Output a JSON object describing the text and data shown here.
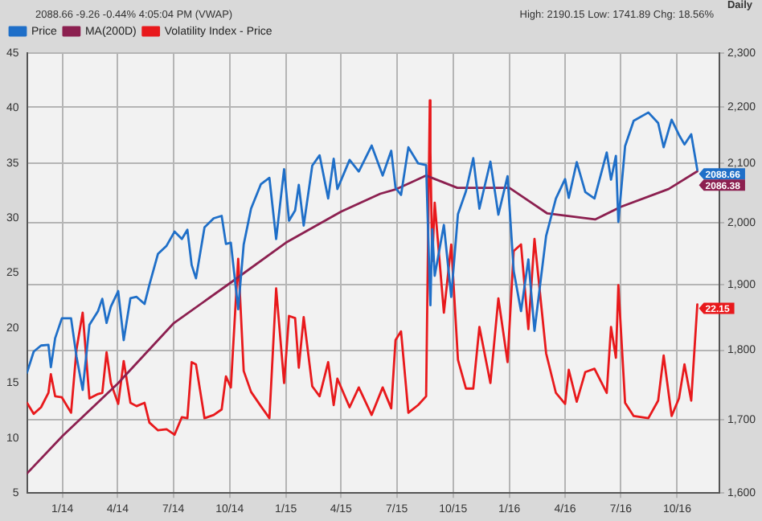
{
  "chart_data": {
    "type": "line",
    "annotations": [
      "2088.66 -9.26 -0.44% 4:05:04 PM (VWAP)",
      "High: 2190.15 Low: 1741.89 Chg: 18.56%",
      "Daily"
    ],
    "x": [
      "2013-11-04",
      "2013-11-15",
      "2013-11-27",
      "2013-12-09",
      "2013-12-13",
      "2013-12-20",
      "2013-12-31",
      "2014-01-15",
      "2014-01-24",
      "2014-02-03",
      "2014-02-14",
      "2014-02-28",
      "2014-03-07",
      "2014-03-14",
      "2014-03-21",
      "2014-04-02",
      "2014-04-11",
      "2014-04-22",
      "2014-05-02",
      "2014-05-15",
      "2014-05-23",
      "2014-06-06",
      "2014-06-20",
      "2014-07-03",
      "2014-07-15",
      "2014-07-24",
      "2014-07-31",
      "2014-08-07",
      "2014-08-21",
      "2014-09-05",
      "2014-09-18",
      "2014-09-25",
      "2014-10-03",
      "2014-10-15",
      "2014-10-24",
      "2014-11-05",
      "2014-11-21",
      "2014-12-05",
      "2014-12-16",
      "2014-12-29",
      "2015-01-06",
      "2015-01-16",
      "2015-01-22",
      "2015-01-30",
      "2015-02-13",
      "2015-02-25",
      "2015-03-11",
      "2015-03-20",
      "2015-03-26",
      "2015-04-15",
      "2015-04-30",
      "2015-05-21",
      "2015-06-08",
      "2015-06-22",
      "2015-06-29",
      "2015-07-08",
      "2015-07-20",
      "2015-08-05",
      "2015-08-18",
      "2015-08-24",
      "2015-08-25",
      "2015-08-28",
      "2015-09-01",
      "2015-09-16",
      "2015-09-28",
      "2015-10-09",
      "2015-10-22",
      "2015-11-03",
      "2015-11-13",
      "2015-12-01",
      "2015-12-14",
      "2015-12-29",
      "2016-01-08",
      "2016-01-20",
      "2016-02-01",
      "2016-02-11",
      "2016-03-01",
      "2016-03-17",
      "2016-04-01",
      "2016-04-07",
      "2016-04-20",
      "2016-05-04",
      "2016-05-19",
      "2016-06-08",
      "2016-06-15",
      "2016-06-23",
      "2016-06-27",
      "2016-07-08",
      "2016-07-22",
      "2016-08-15",
      "2016-08-31",
      "2016-09-09",
      "2016-09-22",
      "2016-10-04",
      "2016-10-13",
      "2016-10-24",
      "2016-11-03"
    ],
    "series": [
      {
        "name": "Price",
        "color": "#1f6fc8",
        "axis": "y2",
        "values": [
          1767,
          1798,
          1807,
          1808,
          1775,
          1818,
          1848,
          1848,
          1790,
          1742,
          1838,
          1859,
          1878,
          1841,
          1866,
          1890,
          1815,
          1879,
          1881,
          1870,
          1900,
          1949,
          1962,
          1985,
          1973,
          1988,
          1931,
          1910,
          1992,
          2007,
          2011,
          1965,
          1967,
          1862,
          1964,
          2023,
          2064,
          2075,
          1973,
          2090,
          2003,
          2020,
          2063,
          1995,
          2096,
          2114,
          2040,
          2108,
          2056,
          2106,
          2086,
          2131,
          2079,
          2122,
          2058,
          2046,
          2128,
          2100,
          2097,
          1893,
          1868,
          1989,
          1914,
          1996,
          1881,
          2014,
          2052,
          2109,
          2023,
          2103,
          2013,
          2078,
          1922,
          1859,
          1940,
          1829,
          1978,
          2040,
          2073,
          2041,
          2102,
          2051,
          2040,
          2119,
          2072,
          2113,
          2001,
          2130,
          2175,
          2190,
          2171,
          2128,
          2177,
          2150,
          2133,
          2151,
          2088.66
        ],
        "value_labels": [
          null,
          null,
          null,
          null,
          null,
          null,
          null,
          null,
          null,
          null,
          null,
          null,
          null,
          null,
          null,
          null,
          null,
          null,
          null,
          null,
          null,
          null,
          null,
          null,
          null,
          null,
          null,
          null,
          null,
          null,
          null,
          null,
          null,
          null,
          null,
          null,
          null,
          null,
          null,
          null,
          null,
          null,
          null,
          null,
          null,
          null,
          null,
          null,
          null,
          null,
          null,
          null,
          null,
          null,
          null,
          null,
          null,
          null,
          null,
          null,
          null,
          null,
          null,
          null,
          null,
          null,
          null,
          null,
          null,
          null,
          null,
          null,
          null,
          null,
          null,
          null,
          null,
          null,
          null,
          null,
          null,
          null,
          null,
          null,
          null,
          null,
          null,
          null,
          null,
          null,
          null,
          null,
          null,
          null,
          null,
          null,
          "2088.66"
        ]
      },
      {
        "name": "MA(200D)",
        "color": "#8c2050",
        "axis": "y2",
        "x": [
          "2013-11-04",
          "2014-01-01",
          "2014-04-01",
          "2014-07-01",
          "2014-10-01",
          "2015-01-01",
          "2015-04-01",
          "2015-06-04",
          "2015-07-01",
          "2015-08-18",
          "2015-10-08",
          "2016-01-01",
          "2016-03-03",
          "2016-05-20",
          "2016-07-01",
          "2016-09-17",
          "2016-11-03"
        ],
        "values": [
          1626,
          1677,
          1751,
          1840,
          1902,
          1967,
          2018,
          2048,
          2056,
          2079,
          2058,
          2058,
          2015,
          2005,
          2026,
          2056,
          2086.38
        ],
        "value_labels": [
          null,
          null,
          null,
          null,
          null,
          null,
          null,
          null,
          null,
          null,
          null,
          null,
          null,
          null,
          null,
          null,
          "2086.38"
        ]
      },
      {
        "name": "Volatility Index - Price",
        "color": "#e8191c",
        "axis": "y",
        "values": [
          13.2,
          12.2,
          12.8,
          14.1,
          15.8,
          13.8,
          13.7,
          12.3,
          18.1,
          21.4,
          13.6,
          14.0,
          14.1,
          17.8,
          15.0,
          13.1,
          17.0,
          13.2,
          12.9,
          13.2,
          11.4,
          10.7,
          10.8,
          10.3,
          11.9,
          11.8,
          16.9,
          16.7,
          11.8,
          12.1,
          12.6,
          15.6,
          14.6,
          26.3,
          16.1,
          14.2,
          12.9,
          11.8,
          23.6,
          15.0,
          21.1,
          20.9,
          16.4,
          21.0,
          14.7,
          13.8,
          16.9,
          13.0,
          15.4,
          12.8,
          14.6,
          12.1,
          14.6,
          12.7,
          18.9,
          19.7,
          12.3,
          13.0,
          13.8,
          40.7,
          36.0,
          26.1,
          31.4,
          21.4,
          27.6,
          17.1,
          14.5,
          14.5,
          20.1,
          15.0,
          22.7,
          16.9,
          27.0,
          27.6,
          19.9,
          28.1,
          17.7,
          14.1,
          13.1,
          16.2,
          13.3,
          16.0,
          16.3,
          14.1,
          20.1,
          17.3,
          23.9,
          13.2,
          12.0,
          11.8,
          13.4,
          17.5,
          12.0,
          13.6,
          16.7,
          13.4,
          22.15
        ],
        "value_labels": [
          null,
          null,
          null,
          null,
          null,
          null,
          null,
          null,
          null,
          null,
          null,
          null,
          null,
          null,
          null,
          null,
          null,
          null,
          null,
          null,
          null,
          null,
          null,
          null,
          null,
          null,
          null,
          null,
          null,
          null,
          null,
          null,
          null,
          null,
          null,
          null,
          null,
          null,
          null,
          null,
          null,
          null,
          null,
          null,
          null,
          null,
          null,
          null,
          null,
          null,
          null,
          null,
          null,
          null,
          null,
          null,
          null,
          null,
          null,
          null,
          null,
          null,
          null,
          null,
          null,
          null,
          null,
          null,
          null,
          null,
          null,
          null,
          null,
          null,
          null,
          null,
          null,
          null,
          null,
          null,
          null,
          null,
          null,
          null,
          null,
          null,
          null,
          null,
          null,
          null,
          null,
          null,
          null,
          null,
          null,
          null,
          "22.15"
        ]
      }
    ],
    "xlim": [
      "2013-11-04",
      "2016-12-09"
    ],
    "xticks": [
      {
        "value": "2014-01-01",
        "label": "1/14"
      },
      {
        "value": "2014-04-01",
        "label": "4/14"
      },
      {
        "value": "2014-07-01",
        "label": "7/14"
      },
      {
        "value": "2014-10-01",
        "label": "10/14"
      },
      {
        "value": "2015-01-01",
        "label": "1/15"
      },
      {
        "value": "2015-04-01",
        "label": "4/15"
      },
      {
        "value": "2015-07-01",
        "label": "7/15"
      },
      {
        "value": "2015-10-01",
        "label": "10/15"
      },
      {
        "value": "2016-01-01",
        "label": "1/16"
      },
      {
        "value": "2016-04-01",
        "label": "4/16"
      },
      {
        "value": "2016-07-01",
        "label": "7/16"
      },
      {
        "value": "2016-10-01",
        "label": "10/16"
      }
    ],
    "ylim": [
      5,
      45
    ],
    "yticks": [
      5,
      10,
      15,
      20,
      25,
      30,
      35,
      40,
      45
    ],
    "y2lim": [
      1600,
      2300
    ],
    "y2ticks": [
      {
        "value": 1600,
        "label": "1,600"
      },
      {
        "value": 1700,
        "label": "1,700"
      },
      {
        "value": 1800,
        "label": "1,800"
      },
      {
        "value": 1900,
        "label": "1,900"
      },
      {
        "value": 2000,
        "label": "2,000"
      },
      {
        "value": 2100,
        "label": "2,100"
      },
      {
        "value": 2200,
        "label": "2,200"
      },
      {
        "value": 2300,
        "label": "2,300"
      }
    ],
    "log": "y2",
    "grid": true,
    "legend": "top left",
    "marker": "none",
    "line_style": "solid"
  }
}
